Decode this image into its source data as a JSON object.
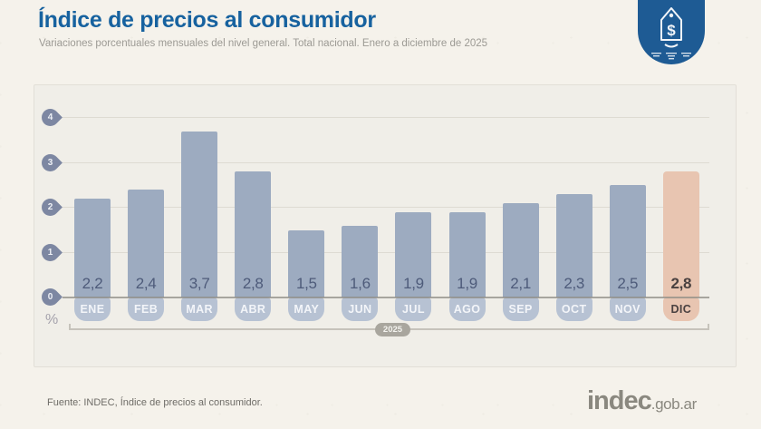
{
  "header": {
    "title": "Índice de precios al consumidor",
    "subtitle": "Variaciones porcentuales mensuales del nivel general. Total nacional. Enero a diciembre de 2025"
  },
  "badge": {
    "icon": "price-tag-icon",
    "symbol": "$"
  },
  "chart_data": {
    "type": "bar",
    "title": "Índice de precios al consumidor",
    "subtitle": "Variaciones porcentuales mensuales del nivel general. Total nacional. Enero a diciembre de 2025",
    "categories": [
      "ENE",
      "FEB",
      "MAR",
      "ABR",
      "MAY",
      "JUN",
      "JUL",
      "AGO",
      "SEP",
      "OCT",
      "NOV",
      "DIC"
    ],
    "values": [
      2.2,
      2.4,
      3.7,
      2.8,
      1.5,
      1.6,
      1.9,
      1.9,
      2.1,
      2.3,
      2.5,
      2.8
    ],
    "value_labels": [
      "2,2",
      "2,4",
      "3,7",
      "2,8",
      "1,5",
      "1,6",
      "1,9",
      "1,9",
      "2,1",
      "2,3",
      "2,5",
      "2,8"
    ],
    "highlight_index": 11,
    "y_ticks": [
      0,
      1,
      2,
      3,
      4
    ],
    "ylim": [
      0,
      4
    ],
    "ylabel": "%",
    "xlabel": "",
    "grid": true,
    "legend": "none",
    "period_label": "2025",
    "colors": {
      "bar": "#9dabc0",
      "bar_highlight": "#e8c5b1",
      "month_pill": "#b7c2d3",
      "month_pill_text": "#f3f5f9",
      "highlight_text": "#4a4140",
      "value_text": "#4e5b7a",
      "tick_badge": "#7d87a2",
      "accent_blue": "#1e5b94"
    }
  },
  "footer": {
    "source": "Fuente: INDEC, Índice de precios al consumidor.",
    "logo_main": "indec",
    "logo_suffix": ".gob.ar"
  }
}
